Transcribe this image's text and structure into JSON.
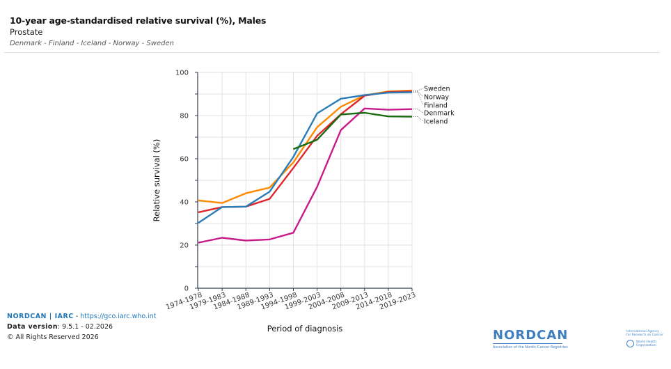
{
  "header": {
    "title": "10-year age-standardised relative survival (%), Males",
    "subtitle": "Prostate",
    "countries": "Denmark - Finland - Iceland - Norway - Sweden"
  },
  "footer": {
    "brand": "NORDCAN | IARC",
    "separator": " - ",
    "link": "https://gco.iarc.who.int",
    "data_version_label": "Data version",
    "data_version_value": ": 9.5.1 - 02.2026",
    "copyright": "© All Rights Reserved 2026"
  },
  "logos": {
    "nordcan_name": "NORDCAN",
    "nordcan_tagline": "Association of the Nordic Cancer Registries",
    "iarc_line1": "International Agency",
    "iarc_line2": "for Research on Cancer",
    "who_line1": "World Health",
    "who_line2": "Organization"
  },
  "chart_data": {
    "type": "line",
    "title": "10-year age-standardised relative survival (%), Males",
    "subtitle": "Prostate",
    "xlabel": "Period of diagnosis",
    "ylabel": "Relative survival (%)",
    "ylim": [
      0,
      100
    ],
    "yticks": [
      0,
      20,
      40,
      60,
      80,
      100
    ],
    "grid": true,
    "legend": "right (end-of-line labels)",
    "categories": [
      "1974-1978",
      "1979-1983",
      "1984-1988",
      "1989-1993",
      "1994-1998",
      "1999-2003",
      "2004-2008",
      "2009-2013",
      "2014-2018",
      "2019-2023"
    ],
    "series": [
      {
        "name": "Sweden",
        "color": "#ff8a00",
        "values": [
          40.7,
          39.5,
          44.0,
          46.6,
          58.3,
          74.6,
          84.1,
          89.4,
          91.2,
          91.6
        ]
      },
      {
        "name": "Norway",
        "color": "#e0262a",
        "values": [
          35.2,
          37.6,
          37.8,
          41.4,
          55.7,
          70.6,
          80.6,
          89.2,
          90.9,
          91.2
        ]
      },
      {
        "name": "Finland",
        "color": "#2a7db8",
        "values": [
          30.3,
          37.6,
          37.8,
          44.7,
          60.8,
          81.0,
          87.8,
          89.5,
          90.6,
          90.8
        ]
      },
      {
        "name": "Denmark",
        "color": "#c81b8a",
        "values": [
          21.1,
          23.4,
          22.1,
          22.6,
          25.7,
          47.0,
          73.3,
          83.3,
          82.7,
          83.0
        ]
      },
      {
        "name": "Iceland",
        "color": "#1a6b10",
        "values": [
          null,
          null,
          null,
          null,
          64.5,
          68.8,
          80.5,
          81.3,
          79.6,
          79.5
        ]
      }
    ]
  }
}
